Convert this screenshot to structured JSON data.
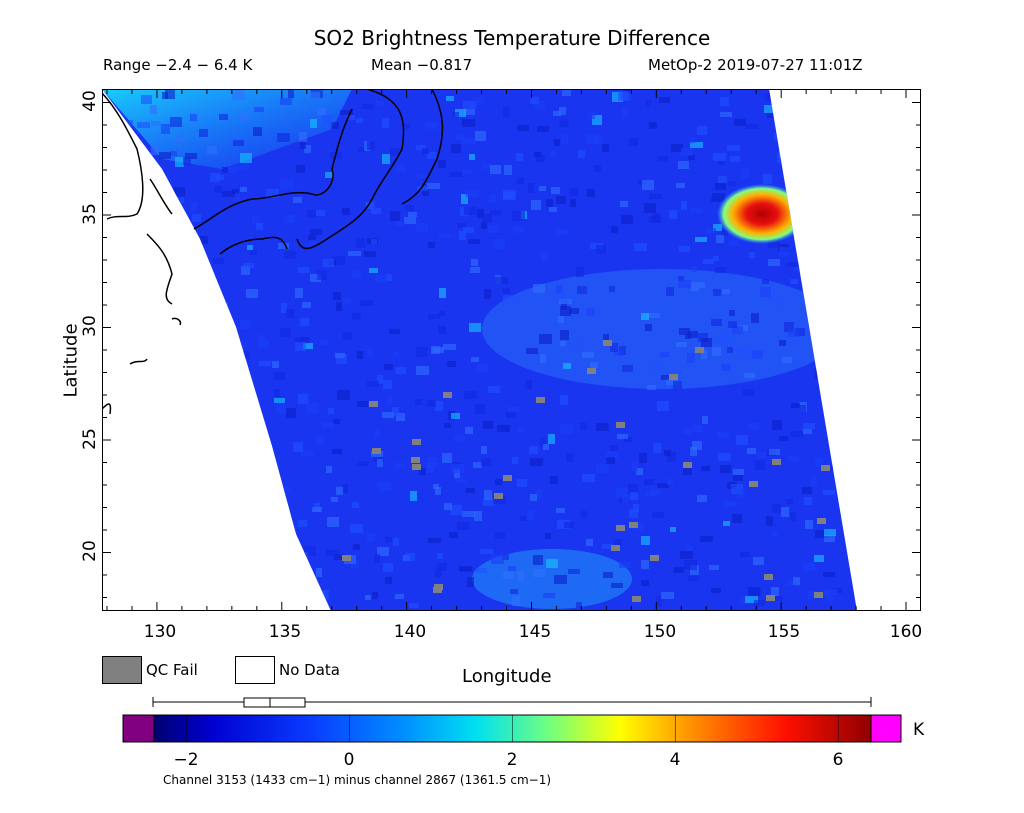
{
  "header": {
    "title": "SO2 Brightness Temperature Difference",
    "range": "Range −2.4 − 6.4 K",
    "mean": "Mean −0.817",
    "satellite_time": "MetOp-2 2019-07-27 11:01Z"
  },
  "axes": {
    "xlabel": "Longitude",
    "ylabel": "Latitude",
    "xticks": [
      "130",
      "135",
      "140",
      "145",
      "150",
      "155",
      "160"
    ],
    "yticks": [
      "40",
      "35",
      "30",
      "25",
      "20"
    ]
  },
  "legend": {
    "qc_fail": "QC Fail",
    "no_data": "No Data",
    "qc_color": "#808080"
  },
  "colorbar": {
    "unit": "K",
    "ticks": [
      "−2",
      "0",
      "2",
      "4",
      "6"
    ],
    "tick_values": [
      -2,
      0,
      2,
      4,
      6
    ],
    "min": -2.4,
    "max": 6.4,
    "caption": "Channel 3153 (1433 cm−1) minus channel 2867 (1361.5 cm−1)"
  },
  "map": {
    "lon_range": [
      127.8,
      160.6
    ],
    "lat_range": [
      17.4,
      40.6
    ],
    "background_color": "#1a35f0",
    "hotspot": {
      "lon": 154.8,
      "lat": 35.0,
      "label_color": "#c80000"
    }
  }
}
